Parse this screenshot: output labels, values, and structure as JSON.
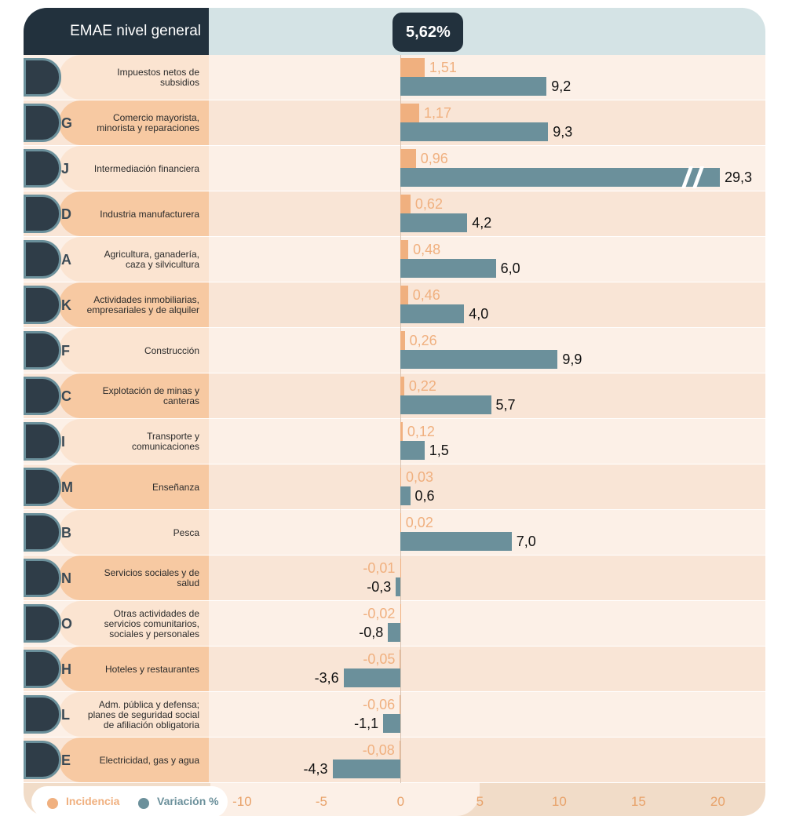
{
  "chart_data": {
    "type": "bar",
    "orientation": "horizontal",
    "title": "EMAE nivel general",
    "total": {
      "value": 5.62,
      "label": "5,62%"
    },
    "categories": [
      "Impuestos netos de subsidios",
      "Comercio mayorista, minorista y reparaciones",
      "Intermediación financiera",
      "Industria manufacturera",
      "Agricultura, ganadería, caza y silvicultura",
      "Actividades inmobiliarias, empresariales y de alquiler",
      "Construcción",
      "Explotación de minas y canteras",
      "Transporte y comunicaciones",
      "Enseñanza",
      "Pesca",
      "Servicios sociales y de salud",
      "Otras actividades de servicios comunitarios, sociales y personales",
      "Hoteles y restaurantes",
      "Adm. pública y defensa; planes de seguridad social de afiliación obligatoria",
      "Electricidad, gas y agua"
    ],
    "codes": [
      null,
      "G",
      "J",
      "D",
      "A",
      "K",
      "F",
      "C",
      "I",
      "M",
      "B",
      "N",
      "O",
      "H",
      "L",
      "E"
    ],
    "series": [
      {
        "name": "Incidencia",
        "color": "#f0b07f",
        "values": [
          1.51,
          1.17,
          0.96,
          0.62,
          0.48,
          0.46,
          0.26,
          0.22,
          0.12,
          0.03,
          0.02,
          -0.01,
          -0.02,
          -0.05,
          -0.06,
          -0.08
        ],
        "value_labels": [
          "1,51",
          "1,17",
          "0,96",
          "0,62",
          "0,48",
          "0,46",
          "0,26",
          "0,22",
          "0,12",
          "0,03",
          "0,02",
          "-0,01",
          "-0,02",
          "-0,05",
          "-0,06",
          "-0,08"
        ]
      },
      {
        "name": "Variación %",
        "color": "#6b909b",
        "values": [
          9.2,
          9.3,
          29.3,
          4.2,
          6.0,
          4.0,
          9.9,
          5.7,
          1.5,
          0.6,
          7.0,
          -0.3,
          -0.8,
          -3.6,
          -1.1,
          -4.3
        ],
        "value_labels": [
          "9,2",
          "9,3",
          "29,3",
          "4,2",
          "6,0",
          "4,0",
          "9,9",
          "5,7",
          "1,5",
          "0,6",
          "7,0",
          "-0,3",
          "-0,8",
          "-3,6",
          "-1,1",
          "-4,3"
        ]
      }
    ],
    "xlim": [
      -12,
      23
    ],
    "xticks": [
      -10,
      -5,
      0,
      5,
      10,
      15,
      20
    ]
  }
}
